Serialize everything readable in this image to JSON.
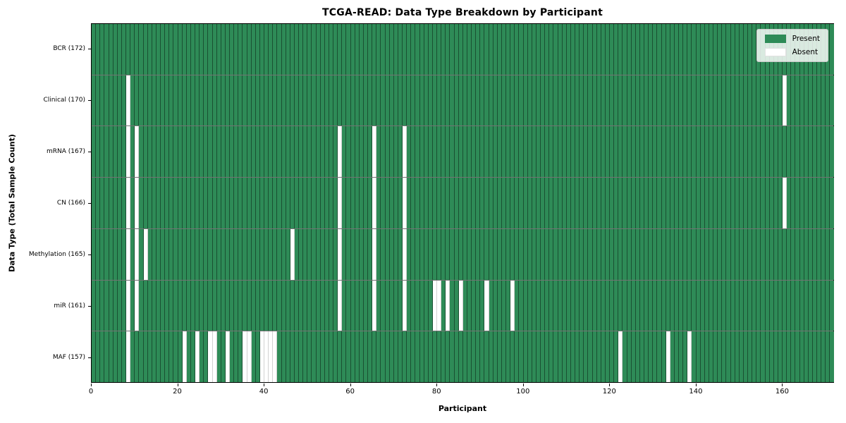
{
  "title": "TCGA-READ: Data Type Breakdown by Participant",
  "xlabel": "Participant",
  "ylabel": "Data Type (Total Sample Count)",
  "legend": {
    "present_label": "Present",
    "absent_label": "Absent"
  },
  "colors": {
    "present": "#2e8b57",
    "absent": "#ffffff"
  },
  "chart_data": {
    "type": "heatmap",
    "title": "TCGA-READ: Data Type Breakdown by Participant",
    "xlabel": "Participant",
    "ylabel": "Data Type (Total Sample Count)",
    "n_participants": 172,
    "x_ticks": [
      0,
      20,
      40,
      60,
      80,
      100,
      120,
      140,
      160
    ],
    "xlim": [
      0,
      172
    ],
    "legend_position": "upper right",
    "legend_entries": [
      "Present",
      "Absent"
    ],
    "value_encoding": {
      "present": "green cell",
      "absent": "white cell"
    },
    "rows": [
      {
        "label": "BCR (172)",
        "data_type": "BCR",
        "total_samples": 172,
        "absent_participants": []
      },
      {
        "label": "Clinical (170)",
        "data_type": "Clinical",
        "total_samples": 170,
        "absent_participants": [
          8,
          160
        ]
      },
      {
        "label": "mRNA (167)",
        "data_type": "mRNA",
        "total_samples": 167,
        "absent_participants": [
          8,
          10,
          57,
          65,
          72
        ]
      },
      {
        "label": "CN (166)",
        "data_type": "CN",
        "total_samples": 166,
        "absent_participants": [
          8,
          10,
          57,
          65,
          72,
          160
        ]
      },
      {
        "label": "Methylation (165)",
        "data_type": "Methylation",
        "total_samples": 165,
        "absent_participants": [
          8,
          10,
          12,
          46,
          57,
          65,
          72
        ]
      },
      {
        "label": "miR (161)",
        "data_type": "miR",
        "total_samples": 161,
        "absent_participants": [
          8,
          10,
          57,
          65,
          72,
          79,
          80,
          82,
          85,
          91,
          97
        ]
      },
      {
        "label": "MAF (157)",
        "data_type": "MAF",
        "total_samples": 157,
        "absent_participants": [
          8,
          21,
          24,
          27,
          28,
          31,
          35,
          36,
          39,
          40,
          41,
          42,
          122,
          133,
          138
        ]
      }
    ]
  }
}
